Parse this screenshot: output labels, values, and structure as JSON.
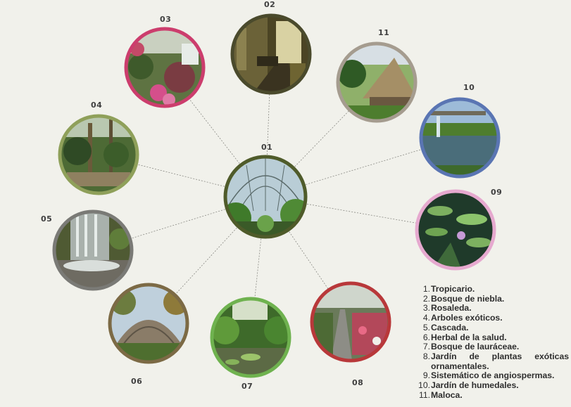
{
  "nodes": [
    {
      "id": "01",
      "color": "#4f5b2a",
      "photo": "tropical-greenhouse-dome-photo"
    },
    {
      "id": "02",
      "color": "#4a4a2c",
      "photo": "cloud-forest-path-photo"
    },
    {
      "id": "03",
      "color": "#cc3d6d",
      "photo": "rose-garden-fountain-photo"
    },
    {
      "id": "04",
      "color": "#8fa05a",
      "photo": "exotic-trees-photo"
    },
    {
      "id": "05",
      "color": "#7a7a76",
      "photo": "waterfall-photo"
    },
    {
      "id": "06",
      "color": "#7c6a45",
      "photo": "health-herb-garden-dome-photo"
    },
    {
      "id": "07",
      "color": "#6fb24f",
      "photo": "lauraceae-forest-pond-photo"
    },
    {
      "id": "08",
      "color": "#b8383a",
      "photo": "ornamental-plants-greenhouse-photo"
    },
    {
      "id": "09",
      "color": "#e6a9cf",
      "photo": "water-lilies-photo"
    },
    {
      "id": "10",
      "color": "#5a75b3",
      "photo": "wetland-garden-photo"
    },
    {
      "id": "11",
      "color": "#a59c8f",
      "photo": "maloca-hut-photo"
    }
  ],
  "legend": [
    {
      "num": "1.",
      "text": "Tropicario."
    },
    {
      "num": "2.",
      "text": "Bosque de niebla."
    },
    {
      "num": "3.",
      "text": "Rosaleda."
    },
    {
      "num": "4.",
      "text": "Arboles exóticos."
    },
    {
      "num": "5.",
      "text": "Cascada."
    },
    {
      "num": "6.",
      "text": "Herbal de la salud."
    },
    {
      "num": "7.",
      "text": "Bosque de lauráceae."
    },
    {
      "num": "8.",
      "text": "Jardín de plantas exóticas ornamentales."
    },
    {
      "num": "9.",
      "text": "Sistemático de angiospermas."
    },
    {
      "num": "10.",
      "text": "Jardín de humedales."
    },
    {
      "num": "11.",
      "text": "Maloca."
    }
  ]
}
